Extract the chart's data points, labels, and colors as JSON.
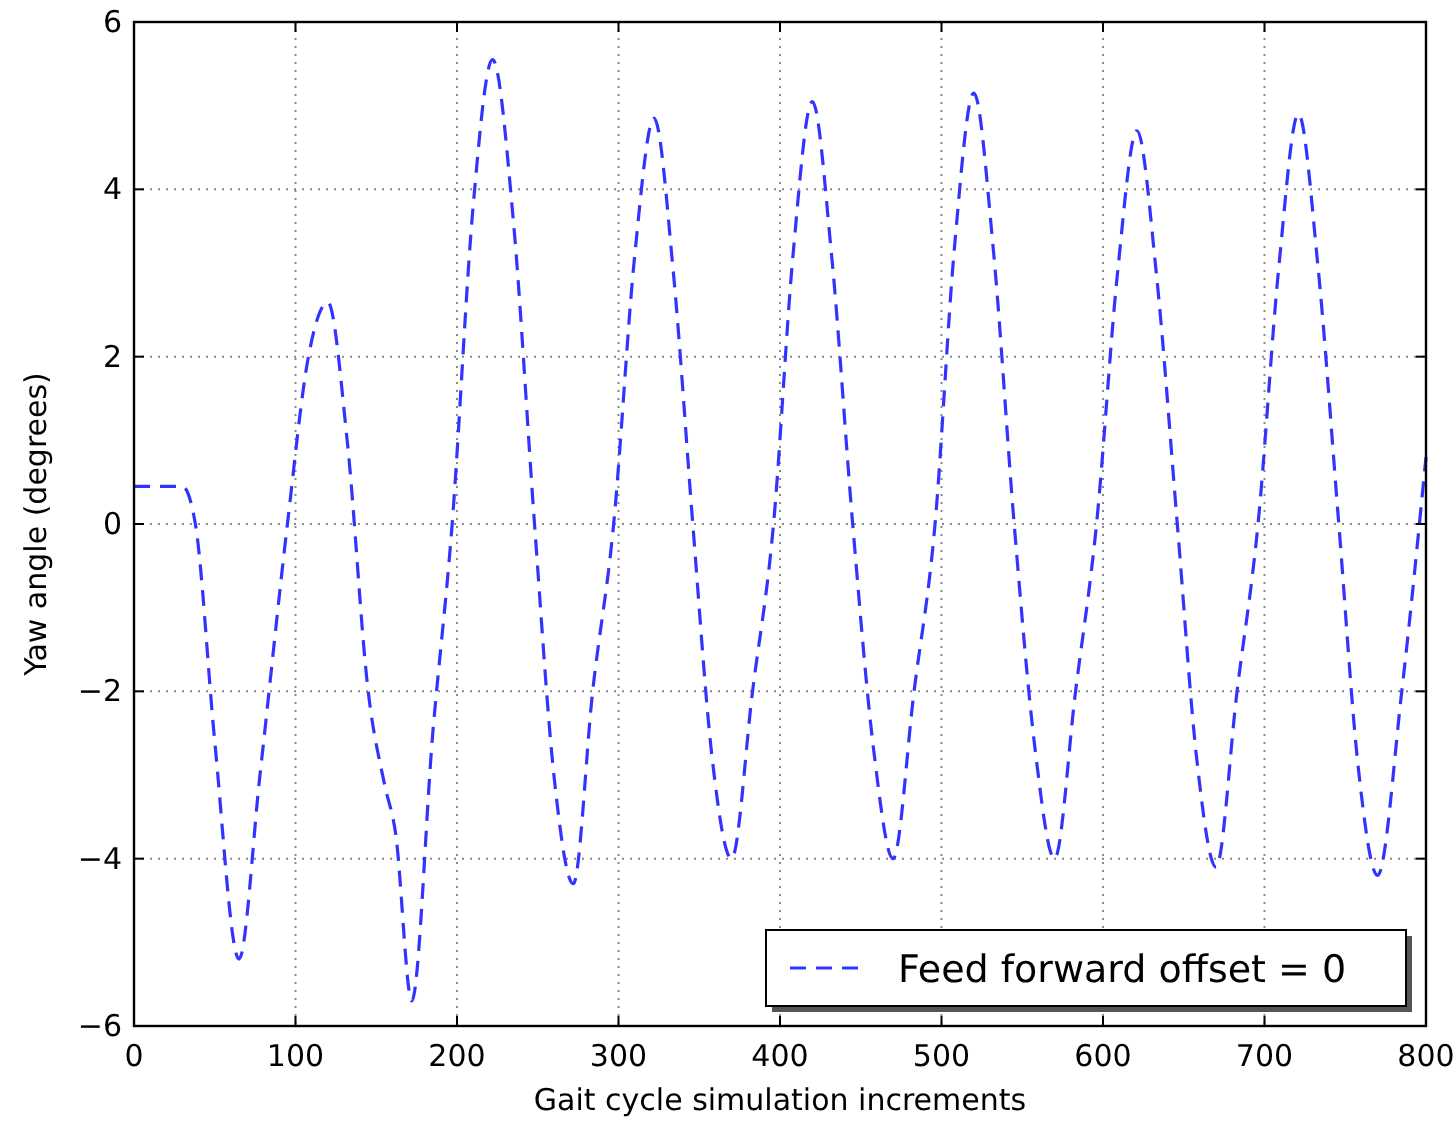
{
  "chart_data": {
    "type": "line",
    "xlabel": "Gait cycle simulation increments",
    "ylabel": "Yaw angle (degrees)",
    "xlim": [
      0,
      800
    ],
    "xticks": [
      0,
      100,
      200,
      300,
      400,
      500,
      600,
      700,
      800
    ],
    "ylim": [
      -6,
      6
    ],
    "yticks": [
      -6,
      -4,
      -2,
      0,
      2,
      4,
      6
    ],
    "grid": true,
    "legend": "bottom right",
    "line_style": "dashed",
    "series": [
      {
        "name": "Feed forward offset = 0",
        "color": "#3333ff",
        "x": [
          0,
          30,
          38,
          50,
          65,
          78,
          95,
          108,
          120,
          132,
          145,
          155,
          162,
          172,
          185,
          197,
          210,
          222,
          235,
          248,
          260,
          272,
          284,
          297,
          310,
          322,
          334,
          346,
          358,
          370,
          383,
          396,
          408,
          420,
          432,
          445,
          458,
          470,
          483,
          496,
          508,
          520,
          532,
          545,
          558,
          570,
          583,
          596,
          609,
          621,
          633,
          646,
          658,
          670,
          683,
          696,
          709,
          721,
          733,
          746,
          758,
          770,
          785,
          800
        ],
        "values": [
          0.45,
          0.45,
          0,
          -2.6,
          -5.2,
          -3.0,
          0,
          2.0,
          2.65,
          1.0,
          -2.0,
          -3.1,
          -3.7,
          -5.7,
          -2.5,
          0,
          3.8,
          5.55,
          3.6,
          0,
          -3.0,
          -4.3,
          -2,
          0,
          3.2,
          4.85,
          3,
          0,
          -2.8,
          -4.0,
          -2,
          0,
          3.2,
          5.05,
          3.2,
          0,
          -2.7,
          -4.0,
          -2,
          0,
          3.3,
          5.15,
          3.3,
          0,
          -2.7,
          -4.0,
          -2,
          0,
          3.0,
          4.7,
          3,
          0,
          -2.8,
          -4.1,
          -2,
          0,
          3.1,
          4.9,
          3.1,
          0,
          -2.9,
          -4.2,
          -2,
          0.8
        ]
      }
    ]
  }
}
